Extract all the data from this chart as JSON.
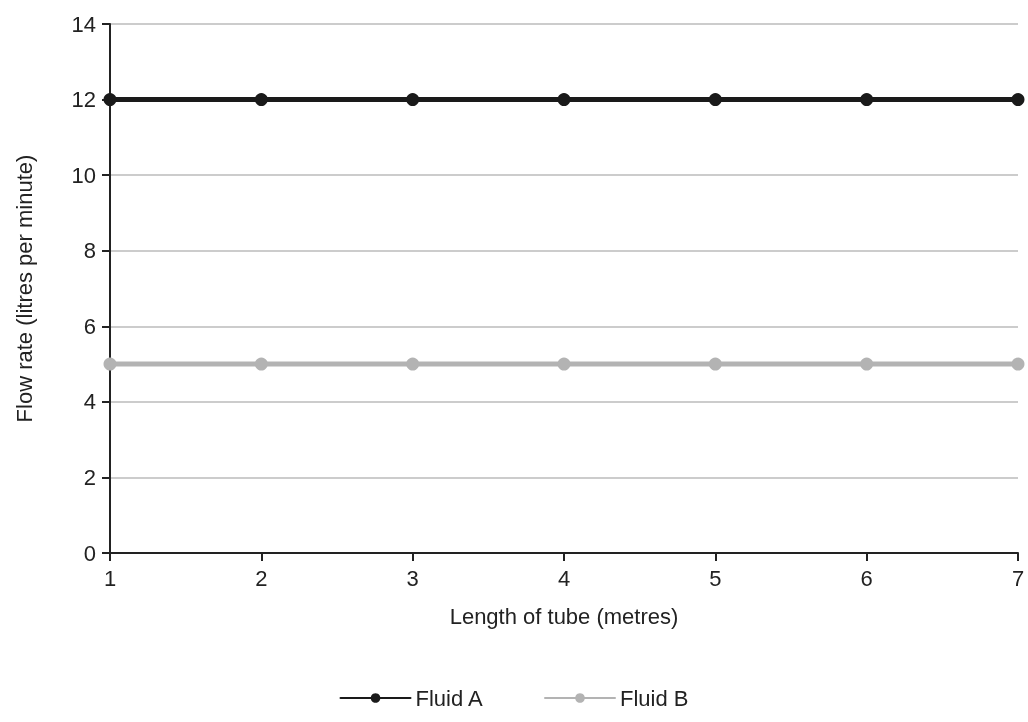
{
  "chart_data": {
    "type": "line",
    "xlabel": "Length of tube (metres)",
    "ylabel": "Flow rate (litres per minute)",
    "x": [
      1,
      2,
      3,
      4,
      5,
      6,
      7
    ],
    "series": [
      {
        "name": "Fluid A",
        "color": "#1a1a1a",
        "values": [
          12,
          12,
          12,
          12,
          12,
          12,
          12
        ]
      },
      {
        "name": "Fluid B",
        "color": "#b3b3b3",
        "values": [
          5,
          5,
          5,
          5,
          5,
          5,
          5
        ]
      }
    ],
    "xlim": [
      1,
      7
    ],
    "xticks": [
      1,
      2,
      3,
      4,
      5,
      6,
      7
    ],
    "ylim": [
      0,
      14
    ],
    "yticks": [
      0,
      2,
      4,
      6,
      8,
      10,
      12,
      14
    ],
    "grid": "y",
    "legend": "bottom",
    "marker": "circle",
    "line_style": "solid"
  }
}
